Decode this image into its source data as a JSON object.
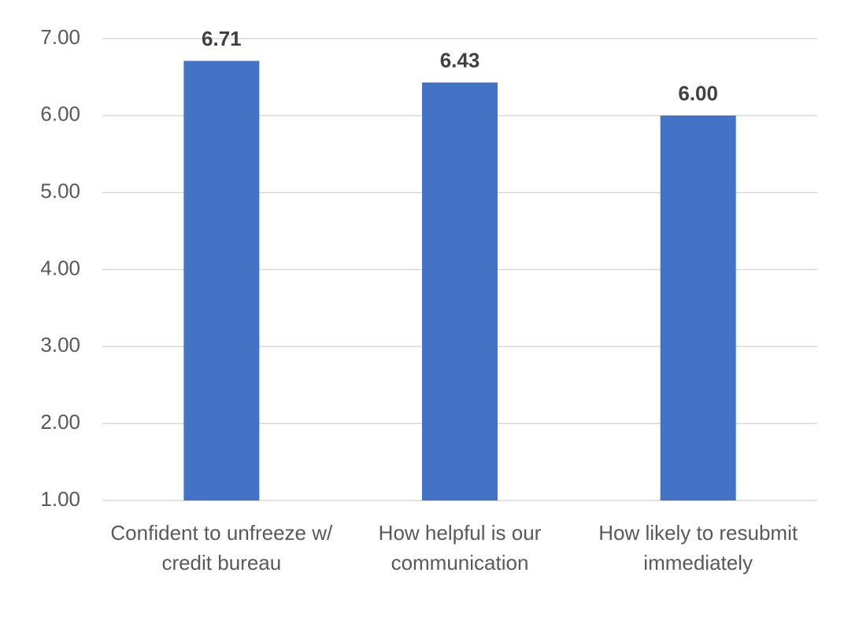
{
  "chart_data": {
    "type": "bar",
    "categories": [
      "Confident to unfreeze w/ credit bureau",
      "How helpful is our communication",
      "How likely to resubmit immediately"
    ],
    "values": [
      6.71,
      6.43,
      6
    ],
    "value_labels": [
      "6.71",
      "6.43",
      "6.00"
    ],
    "color": "#4472c4",
    "ylim": [
      1,
      7
    ],
    "yticks": [
      {
        "value": 1,
        "label": "1.00"
      },
      {
        "value": 2,
        "label": "2.00"
      },
      {
        "value": 3,
        "label": "3.00"
      },
      {
        "value": 4,
        "label": "4.00"
      },
      {
        "value": 5,
        "label": "5.00"
      },
      {
        "value": 6,
        "label": "6.00"
      },
      {
        "value": 7,
        "label": "7.00"
      }
    ],
    "grid": true
  }
}
